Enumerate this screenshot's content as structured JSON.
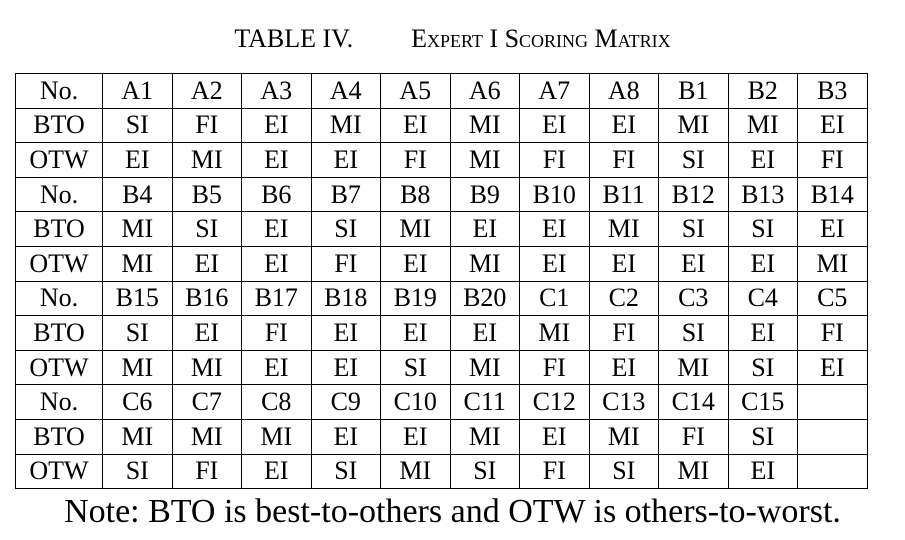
{
  "caption": {
    "label": "TABLE IV.",
    "title": "Expert I Scoring Matrix"
  },
  "table": {
    "blocks": [
      {
        "header": [
          "No.",
          "A1",
          "A2",
          "A3",
          "A4",
          "A5",
          "A6",
          "A7",
          "A8",
          "B1",
          "B2",
          "B3"
        ],
        "bto": [
          "BTO",
          "SI",
          "FI",
          "EI",
          "MI",
          "EI",
          "MI",
          "EI",
          "EI",
          "MI",
          "MI",
          "EI"
        ],
        "otw": [
          "OTW",
          "EI",
          "MI",
          "EI",
          "EI",
          "FI",
          "MI",
          "FI",
          "FI",
          "SI",
          "EI",
          "FI"
        ]
      },
      {
        "header": [
          "No.",
          "B4",
          "B5",
          "B6",
          "B7",
          "B8",
          "B9",
          "B10",
          "B11",
          "B12",
          "B13",
          "B14"
        ],
        "bto": [
          "BTO",
          "MI",
          "SI",
          "EI",
          "SI",
          "MI",
          "EI",
          "EI",
          "MI",
          "SI",
          "SI",
          "EI"
        ],
        "otw": [
          "OTW",
          "MI",
          "EI",
          "EI",
          "FI",
          "EI",
          "MI",
          "EI",
          "EI",
          "EI",
          "EI",
          "MI"
        ]
      },
      {
        "header": [
          "No.",
          "B15",
          "B16",
          "B17",
          "B18",
          "B19",
          "B20",
          "C1",
          "C2",
          "C3",
          "C4",
          "C5"
        ],
        "bto": [
          "BTO",
          "SI",
          "EI",
          "FI",
          "EI",
          "EI",
          "EI",
          "MI",
          "FI",
          "SI",
          "EI",
          "FI"
        ],
        "otw": [
          "OTW",
          "MI",
          "MI",
          "EI",
          "EI",
          "SI",
          "MI",
          "FI",
          "EI",
          "MI",
          "SI",
          "EI"
        ]
      },
      {
        "header": [
          "No.",
          "C6",
          "C7",
          "C8",
          "C9",
          "C10",
          "C11",
          "C12",
          "C13",
          "C14",
          "C15",
          ""
        ],
        "bto": [
          "BTO",
          "MI",
          "MI",
          "MI",
          "EI",
          "EI",
          "MI",
          "EI",
          "MI",
          "FI",
          "SI",
          ""
        ],
        "otw": [
          "OTW",
          "SI",
          "FI",
          "EI",
          "SI",
          "MI",
          "SI",
          "FI",
          "SI",
          "MI",
          "EI",
          ""
        ]
      }
    ]
  },
  "note": "Note: BTO is best-to-others and OTW is others-to-worst."
}
